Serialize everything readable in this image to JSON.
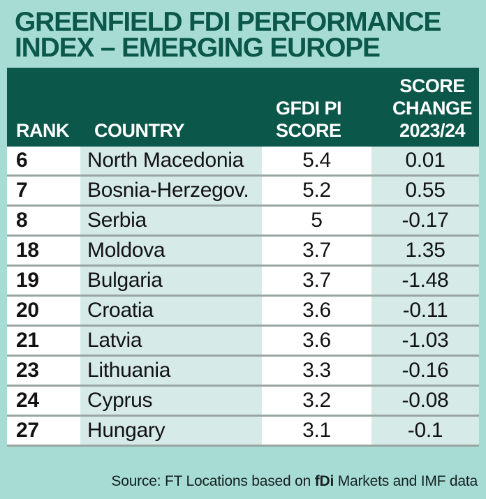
{
  "title": {
    "line1": "GREENFIELD FDI PERFORMANCE",
    "line2": "INDEX – EMERGING EUROPE"
  },
  "table": {
    "headers": {
      "rank": "RANK",
      "country": "COUNTRY",
      "score_line1": "GFDI PI",
      "score_line2": "SCORE",
      "change_line1": "SCORE",
      "change_line2": "CHANGE",
      "change_line3": "2023/24"
    },
    "rows": [
      {
        "rank": "6",
        "country": "North Macedonia",
        "score": "5.4",
        "change": "0.01"
      },
      {
        "rank": "7",
        "country": "Bosnia-Herzegov.",
        "score": "5.2",
        "change": "0.55"
      },
      {
        "rank": "8",
        "country": "Serbia",
        "score": "5",
        "change": "-0.17"
      },
      {
        "rank": "18",
        "country": "Moldova",
        "score": "3.7",
        "change": "1.35"
      },
      {
        "rank": "19",
        "country": "Bulgaria",
        "score": "3.7",
        "change": "-1.48"
      },
      {
        "rank": "20",
        "country": "Croatia",
        "score": "3.6",
        "change": "-0.11"
      },
      {
        "rank": "21",
        "country": "Latvia",
        "score": "3.6",
        "change": "-1.03"
      },
      {
        "rank": "23",
        "country": "Lithuania",
        "score": "3.3",
        "change": "-0.16"
      },
      {
        "rank": "24",
        "country": "Cyprus",
        "score": "3.2",
        "change": "-0.08"
      },
      {
        "rank": "27",
        "country": "Hungary",
        "score": "3.1",
        "change": "-0.1"
      }
    ]
  },
  "source": {
    "prefix": "Source: FT Locations based on ",
    "brand": "fDi",
    "suffix": " Markets and IMF data"
  },
  "colors": {
    "background": "#a7dcd5",
    "header_green": "#0b574a",
    "title_green": "#0b574a",
    "cell_teal": "#d6ebe8",
    "cell_white": "#ffffff",
    "row_separator": "#98a5a2",
    "body_text": "#121212",
    "header_text": "#ffffff"
  },
  "chart_data": {
    "type": "table",
    "title": "GREENFIELD FDI PERFORMANCE INDEX – EMERGING EUROPE",
    "columns": [
      "RANK",
      "COUNTRY",
      "GFDI PI SCORE",
      "SCORE CHANGE 2023/24"
    ],
    "rows": [
      [
        6,
        "North Macedonia",
        5.4,
        0.01
      ],
      [
        7,
        "Bosnia-Herzegov.",
        5.2,
        0.55
      ],
      [
        8,
        "Serbia",
        5,
        -0.17
      ],
      [
        18,
        "Moldova",
        3.7,
        1.35
      ],
      [
        19,
        "Bulgaria",
        3.7,
        -1.48
      ],
      [
        20,
        "Croatia",
        3.6,
        -0.11
      ],
      [
        21,
        "Latvia",
        3.6,
        -1.03
      ],
      [
        23,
        "Lithuania",
        3.3,
        -0.16
      ],
      [
        24,
        "Cyprus",
        3.2,
        -0.08
      ],
      [
        27,
        "Hungary",
        3.1,
        -0.1
      ]
    ],
    "source": "Source: FT Locations based on fDi Markets and IMF data"
  }
}
